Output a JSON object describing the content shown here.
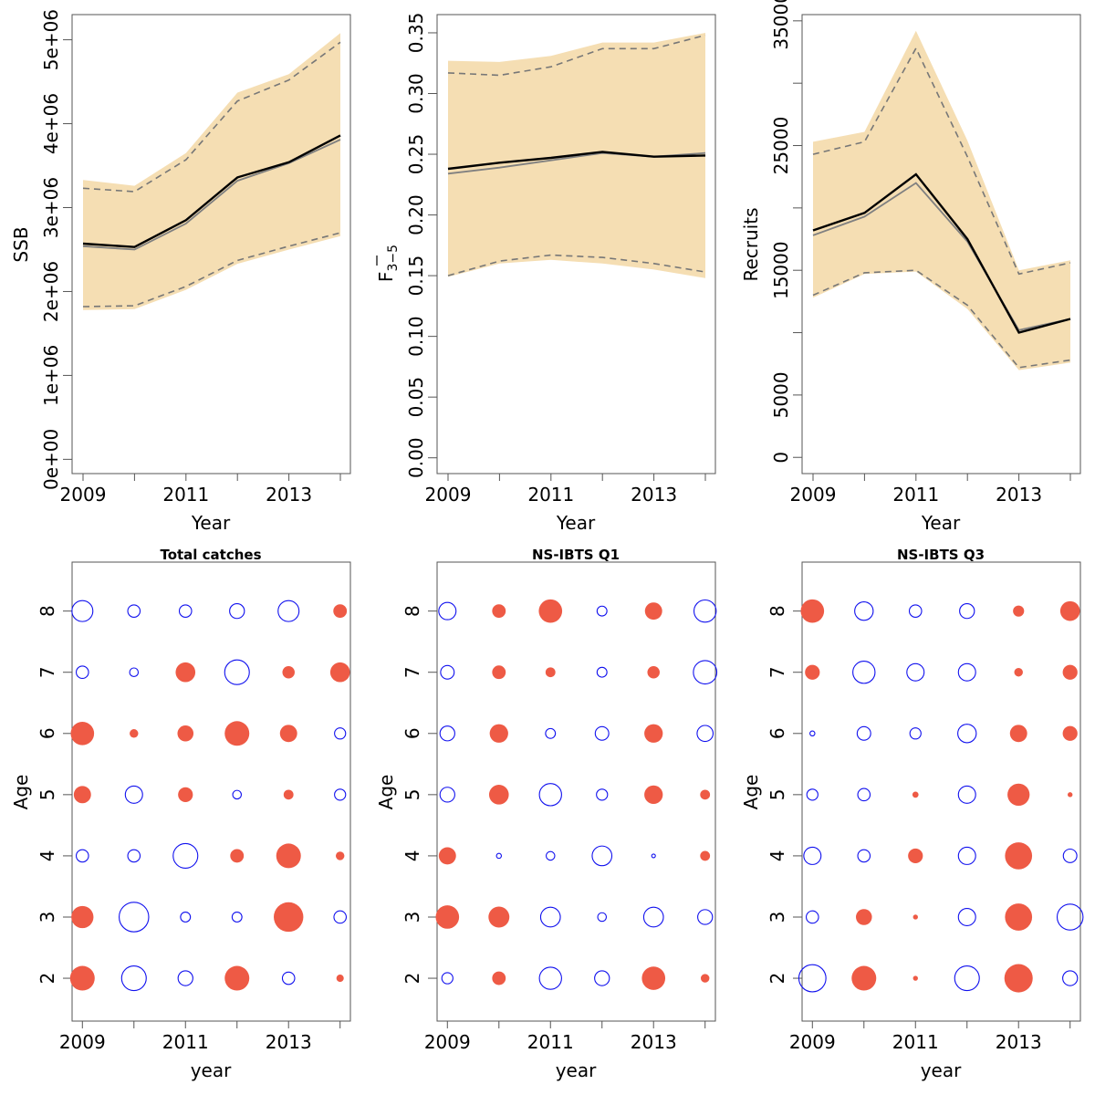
{
  "colors": {
    "band_fill": "#F5DEB3",
    "ci_dash": "#777777",
    "estimate_line": "#000000",
    "estimate_alt_line": "#808080",
    "bubble_positive": "#EE5A45",
    "bubble_negative": "#1010EE"
  },
  "chart_data": [
    {
      "type": "line",
      "panel": "SSB",
      "title": "",
      "xlabel": "Year",
      "ylabel": "SSB",
      "x": [
        2009,
        2010,
        2011,
        2012,
        2013,
        2014
      ],
      "xticks": [
        "2009",
        "2011",
        "2013"
      ],
      "xtick_values": [
        2009,
        2011,
        2013
      ],
      "ylim": [
        -170000,
        5300000
      ],
      "yticks": [
        0,
        1000000,
        2000000,
        3000000,
        4000000,
        5000000
      ],
      "ytick_labels": [
        "0e+00",
        "1e+06",
        "2e+06",
        "3e+06",
        "4e+06",
        "5e+06"
      ],
      "band": {
        "lower": [
          1780000,
          1790000,
          2020000,
          2330000,
          2500000,
          2660000
        ],
        "upper": [
          3330000,
          3260000,
          3650000,
          4370000,
          4590000,
          5080000
        ]
      },
      "series": [
        {
          "role": "ci_lower",
          "values": [
            1820000,
            1830000,
            2060000,
            2370000,
            2540000,
            2700000
          ]
        },
        {
          "role": "ci_upper",
          "values": [
            3230000,
            3190000,
            3570000,
            4270000,
            4520000,
            4970000
          ]
        },
        {
          "role": "estimate_alt",
          "values": [
            2540000,
            2500000,
            2810000,
            3320000,
            3530000,
            3810000
          ]
        },
        {
          "role": "estimate",
          "values": [
            2570000,
            2530000,
            2850000,
            3360000,
            3540000,
            3860000
          ]
        }
      ]
    },
    {
      "type": "line",
      "panel": "F",
      "title": "",
      "xlabel": "Year",
      "ylabel": "F",
      "ylabel_bar": true,
      "ylabel_sub": "3−5",
      "x": [
        2009,
        2010,
        2011,
        2012,
        2013,
        2014
      ],
      "xticks": [
        "2009",
        "2011",
        "2013"
      ],
      "xtick_values": [
        2009,
        2011,
        2013
      ],
      "ylim": [
        -0.013,
        0.365
      ],
      "yticks": [
        0.0,
        0.05,
        0.1,
        0.15,
        0.2,
        0.25,
        0.3,
        0.35
      ],
      "ytick_labels": [
        "0.00",
        "0.05",
        "0.10",
        "0.15",
        "0.20",
        "0.25",
        "0.30",
        "0.35"
      ],
      "band": {
        "lower": [
          0.149,
          0.16,
          0.163,
          0.16,
          0.155,
          0.148
        ],
        "upper": [
          0.327,
          0.326,
          0.331,
          0.342,
          0.342,
          0.35
        ]
      },
      "series": [
        {
          "role": "ci_lower",
          "values": [
            0.15,
            0.162,
            0.167,
            0.165,
            0.16,
            0.153
          ]
        },
        {
          "role": "ci_upper",
          "values": [
            0.317,
            0.315,
            0.322,
            0.337,
            0.337,
            0.348
          ]
        },
        {
          "role": "estimate_alt",
          "values": [
            0.234,
            0.239,
            0.245,
            0.251,
            0.248,
            0.251
          ]
        },
        {
          "role": "estimate",
          "values": [
            0.238,
            0.243,
            0.247,
            0.252,
            0.248,
            0.249
          ]
        }
      ]
    },
    {
      "type": "line",
      "panel": "Recruits",
      "title": "",
      "xlabel": "Year",
      "ylabel": "Recruits",
      "x": [
        2009,
        2010,
        2011,
        2012,
        2013,
        2014
      ],
      "xticks": [
        "2009",
        "2011",
        "2013"
      ],
      "xtick_values": [
        2009,
        2011,
        2013
      ],
      "ylim": [
        -1300,
        35500
      ],
      "yticks": [
        0,
        5000,
        15000,
        25000,
        35000
      ],
      "ytick_labels": [
        "0",
        "5000",
        "15000",
        "25000",
        "35000"
      ],
      "minor_yticks": [
        10000,
        20000,
        30000
      ],
      "band": {
        "lower": [
          12800,
          14700,
          14900,
          11900,
          7000,
          7600
        ],
        "upper": [
          25300,
          26100,
          34200,
          25400,
          15000,
          15800
        ]
      },
      "series": [
        {
          "role": "ci_lower",
          "values": [
            13000,
            14800,
            15000,
            12200,
            7200,
            7800
          ]
        },
        {
          "role": "ci_upper",
          "values": [
            24300,
            25300,
            32800,
            24100,
            14700,
            15600
          ]
        },
        {
          "role": "estimate_alt",
          "values": [
            17800,
            19300,
            22000,
            17300,
            10200,
            11100
          ]
        },
        {
          "role": "estimate",
          "values": [
            18200,
            19600,
            22700,
            17500,
            10000,
            11100
          ]
        }
      ]
    },
    {
      "type": "scatter",
      "panel": "bubble",
      "title": "Total catches",
      "xlabel": "year",
      "ylabel": "Age",
      "xlim": [
        2008.8,
        2014.2
      ],
      "ylim": [
        1.3,
        8.8
      ],
      "xticks": [
        "2009",
        "2011",
        "2013"
      ],
      "xtick_values": [
        2009,
        2011,
        2013
      ],
      "yticks": [
        "2",
        "3",
        "4",
        "5",
        "6",
        "7",
        "8"
      ],
      "ytick_values": [
        2,
        3,
        4,
        5,
        6,
        7,
        8
      ],
      "years": [
        2009,
        2010,
        2011,
        2012,
        2013,
        2014
      ],
      "ages": [
        2,
        3,
        4,
        5,
        6,
        7,
        8
      ],
      "residuals": [
        [
          1.0,
          -1.0,
          -0.6,
          1.0,
          -0.5,
          0.3
        ],
        [
          0.9,
          -1.2,
          -0.4,
          -0.4,
          1.2,
          -0.5
        ],
        [
          -0.5,
          -0.5,
          -1.0,
          0.55,
          1.0,
          0.35
        ],
        [
          0.7,
          -0.7,
          0.6,
          -0.35,
          0.4,
          -0.45
        ],
        [
          0.95,
          0.35,
          0.65,
          1.0,
          0.7,
          -0.45
        ],
        [
          -0.5,
          -0.35,
          0.8,
          -1.0,
          0.5,
          0.8
        ],
        [
          -0.85,
          -0.5,
          -0.5,
          -0.6,
          -0.85,
          0.55
        ]
      ]
    },
    {
      "type": "scatter",
      "panel": "bubble",
      "title": "NS-IBTS Q1",
      "xlabel": "year",
      "ylabel": "Age",
      "xlim": [
        2008.8,
        2014.2
      ],
      "ylim": [
        1.3,
        8.8
      ],
      "xticks": [
        "2009",
        "2011",
        "2013"
      ],
      "xtick_values": [
        2009,
        2011,
        2013
      ],
      "yticks": [
        "2",
        "3",
        "4",
        "5",
        "6",
        "7",
        "8"
      ],
      "ytick_values": [
        2,
        3,
        4,
        5,
        6,
        7,
        8
      ],
      "years": [
        2009,
        2010,
        2011,
        2012,
        2013,
        2014
      ],
      "ages": [
        2,
        3,
        4,
        5,
        6,
        7,
        8
      ],
      "residuals": [
        [
          -0.45,
          0.55,
          -0.9,
          -0.6,
          0.95,
          0.35
        ],
        [
          0.95,
          0.85,
          -0.8,
          -0.35,
          -0.8,
          -0.6
        ],
        [
          0.7,
          -0.2,
          -0.35,
          -0.8,
          -0.15,
          0.4
        ],
        [
          -0.6,
          0.8,
          -0.9,
          -0.45,
          0.75,
          0.4
        ],
        [
          -0.6,
          0.75,
          -0.4,
          -0.55,
          0.75,
          -0.65
        ],
        [
          -0.55,
          0.55,
          0.4,
          -0.4,
          0.5,
          -0.95
        ],
        [
          -0.7,
          0.55,
          0.95,
          -0.4,
          0.7,
          -0.9
        ]
      ]
    },
    {
      "type": "scatter",
      "panel": "bubble",
      "title": "NS-IBTS Q3",
      "xlabel": "year",
      "ylabel": "Age",
      "xlim": [
        2008.8,
        2014.2
      ],
      "ylim": [
        1.3,
        8.8
      ],
      "xticks": [
        "2009",
        "2011",
        "2013"
      ],
      "xtick_values": [
        2009,
        2011,
        2013
      ],
      "yticks": [
        "2",
        "3",
        "4",
        "5",
        "6",
        "7",
        "8"
      ],
      "ytick_values": [
        2,
        3,
        4,
        5,
        6,
        7,
        8
      ],
      "years": [
        2009,
        2010,
        2011,
        2012,
        2013,
        2014
      ],
      "ages": [
        2,
        3,
        4,
        5,
        6,
        7,
        8
      ],
      "residuals": [
        [
          -1.1,
          1.0,
          0.2,
          -1.0,
          1.15,
          -0.6
        ],
        [
          -0.5,
          0.65,
          0.2,
          -0.7,
          1.1,
          -1.05
        ],
        [
          -0.7,
          -0.5,
          0.6,
          -0.7,
          1.1,
          -0.55
        ],
        [
          -0.45,
          -0.5,
          0.25,
          -0.7,
          0.9,
          0.2
        ],
        [
          -0.2,
          -0.55,
          -0.45,
          -0.75,
          0.7,
          0.6
        ],
        [
          0.6,
          -0.9,
          -0.7,
          -0.7,
          0.35,
          0.6
        ],
        [
          0.95,
          -0.75,
          -0.5,
          -0.6,
          0.45,
          0.8
        ]
      ]
    }
  ]
}
